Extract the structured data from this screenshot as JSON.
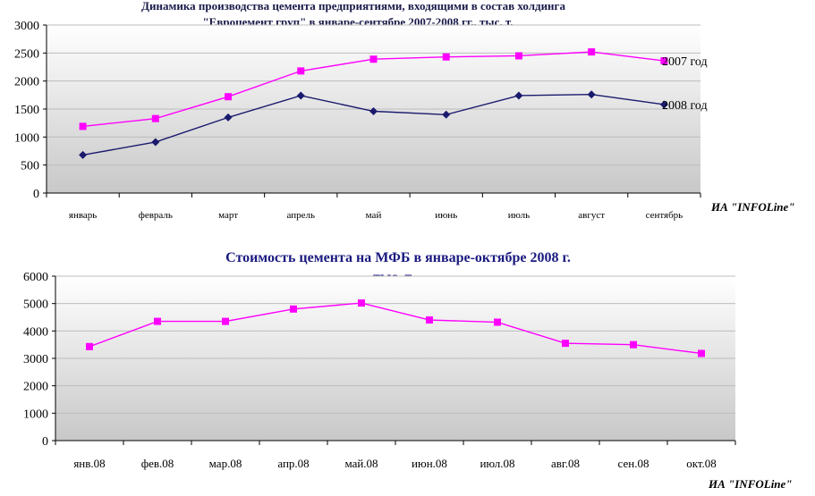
{
  "colors": {
    "series_2007": "#ff00ff",
    "series_2008": "#1a1a6e",
    "plot_bg_top": "#ffffff",
    "plot_bg_bottom": "#c8c8c8"
  },
  "chart_data": [
    {
      "type": "line",
      "title_line1": "Динамика производства цемента предприятиями, входящими в состав холдинга",
      "title_line2": "\"Евроцемент груп\" в январе-сентябре 2007-2008 гг., тыс. т.",
      "source": "ИА \"INFOLine\"",
      "categories": [
        "январь",
        "февраль",
        "март",
        "апрель",
        "май",
        "июнь",
        "июль",
        "август",
        "сентябрь"
      ],
      "ylim": [
        0,
        3000
      ],
      "yticks": [
        0,
        500,
        1000,
        1500,
        2000,
        2500,
        3000
      ],
      "grid": true,
      "series": [
        {
          "name": "2007 год",
          "values": [
            1190,
            1330,
            1720,
            2180,
            2390,
            2430,
            2450,
            2520,
            2360
          ]
        },
        {
          "name": "2008 год",
          "values": [
            680,
            910,
            1350,
            1740,
            1460,
            1400,
            1740,
            1760,
            1580
          ]
        }
      ]
    },
    {
      "type": "line",
      "title_line1": "Стоимость цемента на МФБ в январе-октябре 2008 г.",
      "title_line2": "тыс. т.",
      "source": "ИА \"INFOLine\"",
      "categories": [
        "янв.08",
        "фев.08",
        "мар.08",
        "апр.08",
        "май.08",
        "июн.08",
        "июл.08",
        "авг.08",
        "сен.08",
        "окт.08"
      ],
      "ylim": [
        0,
        6000
      ],
      "yticks": [
        0,
        1000,
        2000,
        3000,
        4000,
        5000,
        6000
      ],
      "grid": true,
      "series": [
        {
          "name": "",
          "values": [
            3430,
            4350,
            4350,
            4800,
            5020,
            4400,
            4320,
            3550,
            3500,
            3180
          ]
        }
      ]
    }
  ]
}
